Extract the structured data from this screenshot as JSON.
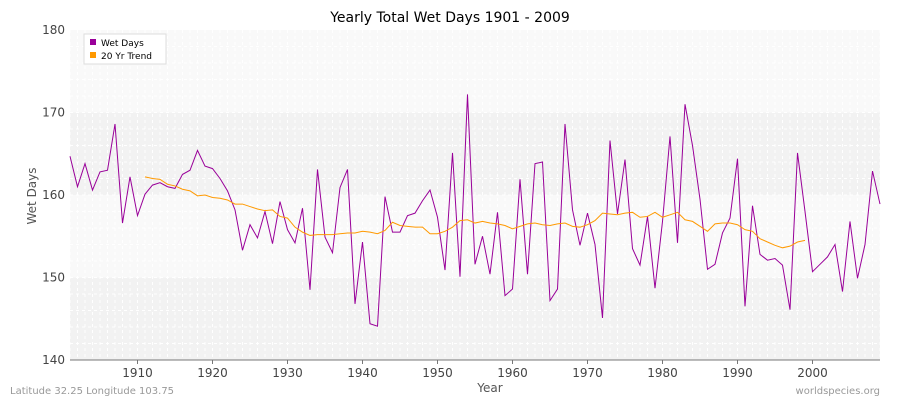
{
  "chart_data": {
    "type": "line",
    "title": "Yearly Total Wet Days 1901 - 2009",
    "xlabel": "Year",
    "ylabel": "Wet Days",
    "xlim": [
      1901,
      2009
    ],
    "ylim": [
      140,
      180
    ],
    "x_ticks": [
      1910,
      1920,
      1930,
      1940,
      1950,
      1960,
      1970,
      1980,
      1990,
      2000
    ],
    "y_ticks": [
      140,
      150,
      160,
      170,
      180
    ],
    "grid": true,
    "legend_position": "top-left",
    "series": [
      {
        "name": "Wet Days",
        "color": "#990099",
        "x_start": 1901,
        "values": [
          164.7,
          161.0,
          163.8,
          160.6,
          162.8,
          163.0,
          168.6,
          156.6,
          162.2,
          157.5,
          160.1,
          161.2,
          161.5,
          161.0,
          160.8,
          162.5,
          163.0,
          165.4,
          163.5,
          163.2,
          162.0,
          160.5,
          158.2,
          153.3,
          156.4,
          154.8,
          158.0,
          154.1,
          159.2,
          155.8,
          154.2,
          158.4,
          148.5,
          163.1,
          154.9,
          153.0,
          160.9,
          163.1,
          146.8,
          154.3,
          144.4,
          144.1,
          159.8,
          155.5,
          155.5,
          157.5,
          157.8,
          159.3,
          160.6,
          157.3,
          150.9,
          165.1,
          150.1,
          172.2,
          151.6,
          155.0,
          150.4,
          157.9,
          147.8,
          148.6,
          161.9,
          150.4,
          163.8,
          164.0,
          147.2,
          148.6,
          168.6,
          158.2,
          153.9,
          157.8,
          154.0,
          145.1,
          166.6,
          157.7,
          164.3,
          153.5,
          151.5,
          157.4,
          148.7,
          156.8,
          167.1,
          154.2,
          171.0,
          166.0,
          159.5,
          151.0,
          151.6,
          155.4,
          157.2,
          164.4,
          146.5,
          158.7,
          152.8,
          152.1,
          152.3,
          151.5,
          146.1,
          165.1,
          158.0,
          150.7,
          151.6,
          152.5,
          154.0,
          148.3,
          156.8,
          149.9,
          154.0,
          162.9,
          158.9
        ]
      },
      {
        "name": "20 Yr Trend",
        "color": "#ff9900",
        "x_start": 1911,
        "values": [
          162.2,
          162.0,
          161.9,
          161.3,
          161.1,
          160.7,
          160.5,
          159.9,
          160.0,
          159.7,
          159.6,
          159.4,
          158.9,
          158.9,
          158.6,
          158.3,
          158.1,
          158.2,
          157.4,
          157.2,
          156.1,
          155.5,
          155.1,
          155.2,
          155.2,
          155.2,
          155.3,
          155.4,
          155.4,
          155.6,
          155.5,
          155.3,
          155.7,
          156.7,
          156.3,
          156.2,
          156.1,
          156.1,
          155.3,
          155.3,
          155.6,
          156.1,
          156.9,
          157.0,
          156.6,
          156.8,
          156.6,
          156.5,
          156.3,
          155.9,
          156.2,
          156.5,
          156.6,
          156.4,
          156.3,
          156.5,
          156.6,
          156.2,
          156.1,
          156.4,
          156.9,
          157.8,
          157.7,
          157.6,
          157.8,
          157.9,
          157.3,
          157.4,
          157.9,
          157.3,
          157.6,
          157.9,
          157.0,
          156.8,
          156.2,
          155.6,
          156.5,
          156.6,
          156.6,
          156.4,
          155.8,
          155.6,
          154.7,
          154.3,
          153.9,
          153.6,
          153.8,
          154.3,
          154.5
        ]
      }
    ]
  },
  "footer": {
    "left": "Latitude 32.25 Longitude 103.75",
    "right": "worldspecies.org"
  }
}
